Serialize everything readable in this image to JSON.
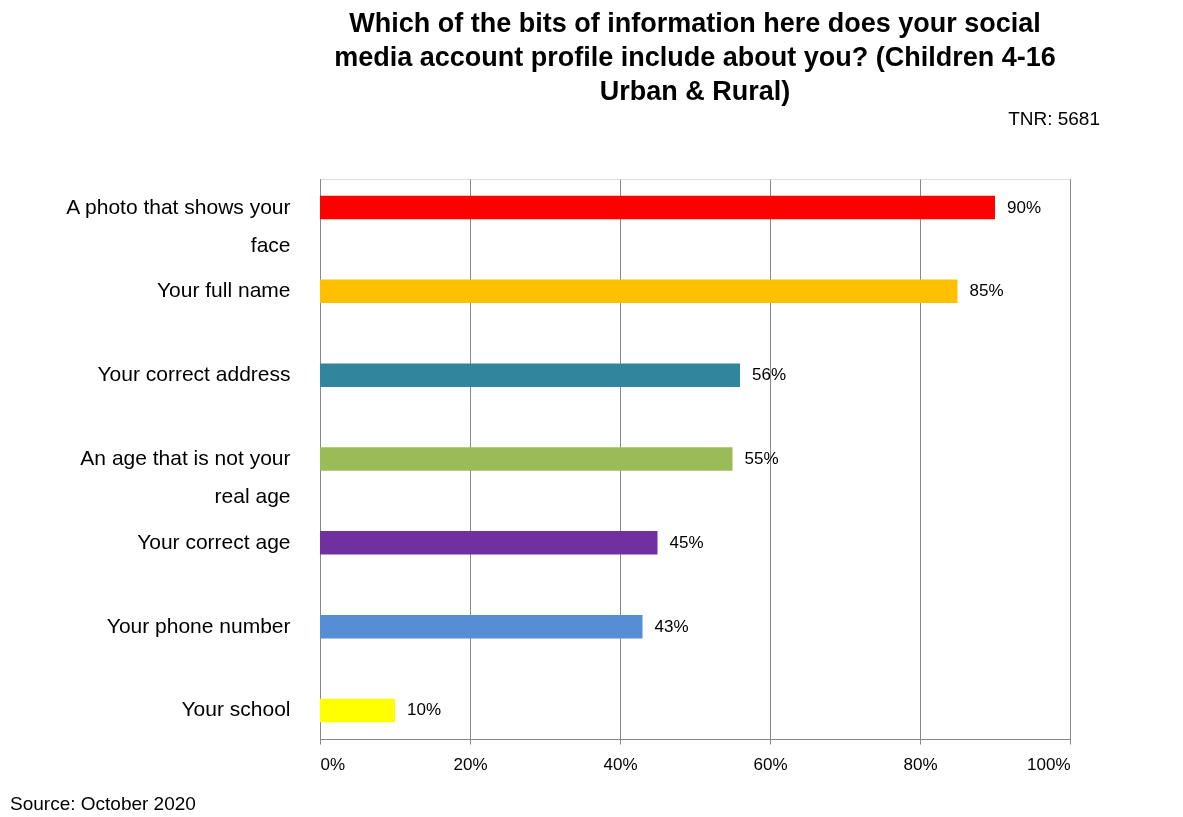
{
  "chart_data": {
    "type": "bar",
    "orientation": "horizontal",
    "title": "Which of the bits of information here does your social media account profile include about you? (Children 4-16 Urban & Rural)",
    "categories": [
      "A photo that shows your face",
      "Your full name",
      "Your correct address",
      "An age that is not your real age",
      "Your correct age",
      "Your phone number",
      "Your school"
    ],
    "values": [
      90,
      85,
      56,
      55,
      45,
      43,
      10
    ],
    "colors": [
      "#ff0000",
      "#ffc000",
      "#31859c",
      "#9bbb59",
      "#7030a0",
      "#558ed5",
      "#ffff00"
    ],
    "value_labels": [
      "90%",
      "85%",
      "56%",
      "55%",
      "45%",
      "43%",
      "10%"
    ],
    "xlim": [
      0,
      100
    ],
    "xticks": [
      {
        "value": 0,
        "label": "0%"
      },
      {
        "value": 20,
        "label": "20%"
      },
      {
        "value": 40,
        "label": "40%"
      },
      {
        "value": 60,
        "label": "60%"
      },
      {
        "value": 80,
        "label": "80%"
      },
      {
        "value": 100,
        "label": "100%"
      }
    ],
    "grid": "x",
    "annotations": [
      "TNR: 5681",
      "Source: October 2020"
    ]
  }
}
